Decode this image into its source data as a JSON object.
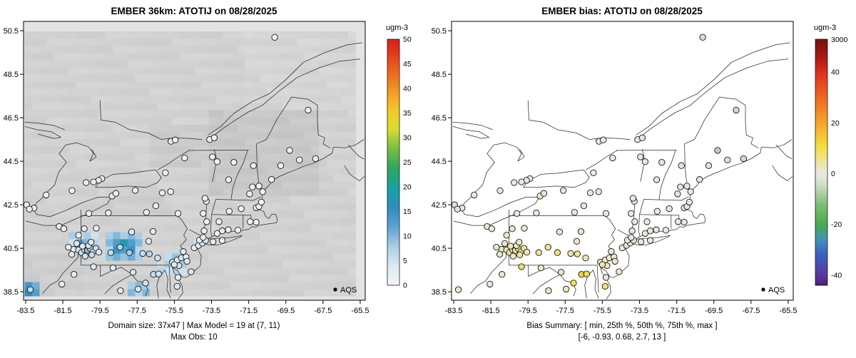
{
  "panels": [
    {
      "id": "model",
      "title": "EMBER 36km: ATOTIJ on 08/28/2025",
      "legend_label": "AQS",
      "captions": [
        "Domain size: 37x47 | Max Model = 19 at (7, 11)",
        "Max Obs: 10"
      ],
      "colorbar": {
        "title": "ugm-3",
        "tick_labels": [
          "0",
          "5",
          "10",
          "15",
          "20",
          "25",
          "30",
          "35",
          "40",
          "45",
          "50"
        ],
        "tick_values": [
          0,
          5,
          10,
          15,
          20,
          25,
          30,
          35,
          40,
          45,
          50
        ]
      }
    },
    {
      "id": "bias",
      "title": "EMBER bias: ATOTIJ on 08/28/2025",
      "legend_label": "AQS",
      "captions": [
        "Bias Summary: [ min, 25th %, 50th %, 75th %, max ]",
        "[-6, -0.93, 0.68, 2.7, 13 ]"
      ],
      "colorbar": {
        "title": "ugm-3",
        "tick_labels": [
          "3000",
          "40",
          "20",
          "0",
          "-20",
          "-40"
        ],
        "tick_values": [
          null,
          40,
          20,
          0,
          -20,
          -40
        ]
      }
    }
  ],
  "axes": {
    "x_tick_labels": [
      "-83.5",
      "-81.5",
      "-79.5",
      "-77.5",
      "-75.5",
      "-73.5",
      "-71.5",
      "-69.5",
      "-67.5",
      "-65.5"
    ],
    "x_tick_values": [
      -83.5,
      -81.5,
      -79.5,
      -77.5,
      -75.5,
      -73.5,
      -71.5,
      -69.5,
      -67.5,
      -65.5
    ],
    "y_tick_labels": [
      "38.5",
      "40.5",
      "42.5",
      "44.5",
      "46.5",
      "48.5",
      "50.5"
    ],
    "y_tick_values": [
      38.5,
      40.5,
      42.5,
      44.5,
      46.5,
      48.5,
      50.5
    ]
  },
  "chart_data": {
    "type": "heatmap",
    "subtype": "model-field-and-station-bias-maps",
    "xlim": [
      -83.615,
      -65.23
    ],
    "ylim": [
      38.11,
      50.93
    ],
    "summary": {
      "domain_size": "37x47",
      "max_model": 19,
      "max_model_cell": "(7, 11)",
      "max_obs": 10,
      "bias_min": -6,
      "bias_p25": -0.93,
      "bias_p50": 0.68,
      "bias_p75": 2.7,
      "bias_max": 13
    },
    "model_colorbar_range": [
      0,
      50
    ],
    "bias_colorbar_range": [
      -44,
      53
    ],
    "model_palette_stops": [
      [
        0,
        "#f5f5f4"
      ],
      [
        4,
        "#dde9f1"
      ],
      [
        8,
        "#abcde4"
      ],
      [
        12,
        "#5ba3d0"
      ],
      [
        16,
        "#2f8bbf"
      ],
      [
        20,
        "#16a3a3"
      ],
      [
        24,
        "#2fa65c"
      ],
      [
        28,
        "#7cbf45"
      ],
      [
        32,
        "#d9df2e"
      ],
      [
        36,
        "#f4c52b"
      ],
      [
        40,
        "#f29222"
      ],
      [
        44,
        "#ea611e"
      ],
      [
        48,
        "#e0301c"
      ],
      [
        50,
        "#dc1f1b"
      ]
    ],
    "bias_palette_stops": [
      [
        -44,
        "#4a1f7a"
      ],
      [
        -40,
        "#5e35a0"
      ],
      [
        -32,
        "#3b5fc0"
      ],
      [
        -26,
        "#3f8fc0"
      ],
      [
        -20,
        "#4aa84e"
      ],
      [
        -12,
        "#7ebd75"
      ],
      [
        -5,
        "#c8dac2"
      ],
      [
        0,
        "#e8e8e6"
      ],
      [
        5,
        "#eee49a"
      ],
      [
        11,
        "#f2df3c"
      ],
      [
        20,
        "#f6a52c"
      ],
      [
        30,
        "#ef6a1d"
      ],
      [
        40,
        "#dc2f1e"
      ],
      [
        47,
        "#a01713"
      ],
      [
        53,
        "#7a120f"
      ]
    ],
    "raster": {
      "outside": "#e3e3e3",
      "base_gray": 210,
      "grid": {
        "lon0": -83.55,
        "lat0": 38.3,
        "cols": 45,
        "rows": 37,
        "dlon": 0.3956,
        "dlat": 0.329
      },
      "gray_patches": [
        [
          -79.2,
          41.9,
          -75.8,
          43.3,
          206
        ],
        [
          -76.8,
          44.2,
          -73.0,
          46.2,
          204
        ],
        [
          -73.5,
          43.0,
          -67.8,
          46.8,
          200
        ],
        [
          -83.7,
          38.3,
          -80.5,
          40.3,
          206
        ],
        [
          -71.5,
          46.8,
          -65.7,
          50.5,
          213
        ]
      ],
      "value_patches": [
        [
          -81.35,
          40.15,
          -79.4,
          41.35,
          6
        ],
        [
          -80.75,
          40.45,
          -79.9,
          41.05,
          11
        ],
        [
          -79.3,
          39.95,
          -77.15,
          41.2,
          9
        ],
        [
          -78.65,
          40.25,
          -77.7,
          40.95,
          15
        ],
        [
          -78.35,
          40.45,
          -77.95,
          40.8,
          18
        ],
        [
          -76.05,
          39.35,
          -74.95,
          40.25,
          7
        ],
        [
          -75.7,
          39.55,
          -75.2,
          40.0,
          11
        ],
        [
          -77.85,
          38.45,
          -77.0,
          39.05,
          8
        ],
        [
          -83.62,
          38.35,
          -82.85,
          38.95,
          13
        ],
        [
          -83.62,
          38.35,
          -83.15,
          38.7,
          18
        ],
        [
          -74.35,
          40.45,
          -73.65,
          40.95,
          5
        ],
        [
          -76.6,
          39.15,
          -76.2,
          39.5,
          6
        ]
      ]
    },
    "stations_format": [
      "lon",
      "lat",
      "obs_ugm3",
      "bias_ugm3"
    ],
    "stations": [
      [
        -80.92,
        40.45,
        3,
        2.5
      ],
      [
        -80.65,
        40.42,
        4,
        3.2
      ],
      [
        -80.5,
        40.3,
        5,
        4.1
      ],
      [
        -80.34,
        40.44,
        6,
        4.8
      ],
      [
        -80.18,
        40.4,
        10,
        5.2
      ],
      [
        -80.02,
        40.48,
        6,
        3.9
      ],
      [
        -79.88,
        40.34,
        5,
        4.4
      ],
      [
        -80.44,
        40.6,
        4,
        2.8
      ],
      [
        -80.12,
        40.62,
        5,
        3.5
      ],
      [
        -79.72,
        40.5,
        6,
        5.0
      ],
      [
        -79.56,
        40.32,
        4,
        3.1
      ],
      [
        -80.3,
        40.14,
        5,
        2.2
      ],
      [
        -79.94,
        40.2,
        6,
        4.6
      ],
      [
        -81.02,
        40.22,
        3,
        1.8
      ],
      [
        -81.2,
        40.55,
        2,
        1.2
      ],
      [
        -80.75,
        40.72,
        3,
        2.0
      ],
      [
        -79.98,
        40.78,
        4,
        2.6
      ],
      [
        -80.1,
        42.1,
        2,
        0.8
      ],
      [
        -79.05,
        42.12,
        2,
        0.5
      ],
      [
        -80.35,
        41.4,
        3,
        1.5
      ],
      [
        -79.7,
        41.42,
        2,
        1.0
      ],
      [
        -78.92,
        40.3,
        6,
        5.5
      ],
      [
        -78.42,
        40.55,
        7,
        6.2
      ],
      [
        -77.92,
        40.3,
        8,
        7.0
      ],
      [
        -77.2,
        40.26,
        6,
        4.2
      ],
      [
        -76.85,
        40.24,
        7,
        5.8
      ],
      [
        -76.4,
        40.05,
        5,
        3.3
      ],
      [
        -76.88,
        40.82,
        4,
        2.4
      ],
      [
        -77.8,
        41.25,
        3,
        1.6
      ],
      [
        -76.65,
        41.27,
        3,
        1.4
      ],
      [
        -75.6,
        39.86,
        5,
        3.0
      ],
      [
        -75.35,
        39.96,
        4,
        2.1
      ],
      [
        -75.12,
        40.06,
        4,
        1.8
      ],
      [
        -74.87,
        40.1,
        3,
        1.2
      ],
      [
        -75.25,
        39.7,
        5,
        2.9
      ],
      [
        -74.6,
        39.42,
        4,
        2.0
      ],
      [
        -74.82,
        39.9,
        3,
        1.5
      ],
      [
        -75.02,
        40.35,
        3,
        1.0
      ],
      [
        -74.43,
        40.52,
        2,
        0.7
      ],
      [
        -74.2,
        40.63,
        3,
        0.9
      ],
      [
        -74.0,
        40.74,
        4,
        1.1
      ],
      [
        -73.82,
        40.86,
        3,
        0.6
      ],
      [
        -74.15,
        40.87,
        2,
        0.4
      ],
      [
        -73.95,
        41.0,
        2,
        0.3
      ],
      [
        -73.42,
        40.8,
        2,
        0.5
      ],
      [
        -72.92,
        40.86,
        1,
        0.2
      ],
      [
        -73.9,
        41.3,
        2,
        0.4
      ],
      [
        -73.76,
        41.72,
        1,
        0.1
      ],
      [
        -73.95,
        42.1,
        1,
        -0.2
      ],
      [
        -73.78,
        42.66,
        2,
        0.3
      ],
      [
        -73.2,
        41.18,
        2,
        0.6
      ],
      [
        -72.92,
        41.3,
        2,
        0.4
      ],
      [
        -72.6,
        41.35,
        1,
        0.2
      ],
      [
        -72.08,
        41.33,
        1,
        0.1
      ],
      [
        -73.1,
        41.72,
        1,
        -0.1
      ],
      [
        -71.42,
        41.72,
        1,
        0.1
      ],
      [
        -71.1,
        41.7,
        1,
        -0.3
      ],
      [
        -71.1,
        42.36,
        2,
        0.5
      ],
      [
        -70.95,
        42.42,
        1,
        0.2
      ],
      [
        -70.82,
        42.62,
        1,
        -0.4
      ],
      [
        -72.55,
        42.2,
        1,
        0.1
      ],
      [
        -71.9,
        42.32,
        1,
        0.3
      ],
      [
        -71.45,
        43.0,
        1,
        -0.5
      ],
      [
        -71.3,
        43.32,
        1,
        -0.2
      ],
      [
        -70.95,
        43.36,
        1,
        -0.6
      ],
      [
        -70.75,
        43.1,
        1,
        -0.3
      ],
      [
        -72.58,
        43.65,
        1,
        -0.4
      ],
      [
        -72.3,
        44.45,
        1,
        -0.8
      ],
      [
        -73.2,
        44.48,
        1,
        -0.5
      ],
      [
        -71.25,
        44.3,
        1,
        -0.9
      ],
      [
        -70.27,
        43.66,
        1,
        -0.7
      ],
      [
        -69.78,
        44.3,
        1,
        -1.2
      ],
      [
        -68.77,
        44.56,
        1,
        -2.0
      ],
      [
        -67.9,
        44.62,
        1,
        -3.5
      ],
      [
        -69.3,
        45.0,
        1,
        -6.0
      ],
      [
        -68.3,
        46.85,
        1,
        -4.5
      ],
      [
        -70.1,
        50.2,
        1,
        -3.0
      ],
      [
        -78.85,
        42.9,
        3,
        1.4
      ],
      [
        -78.65,
        43.02,
        2,
        0.8
      ],
      [
        -77.6,
        43.16,
        2,
        0.9
      ],
      [
        -76.15,
        43.05,
        2,
        0.6
      ],
      [
        -75.7,
        43.1,
        1,
        0.3
      ],
      [
        -75.3,
        42.1,
        2,
        0.7
      ],
      [
        -77.0,
        42.15,
        2,
        1.0
      ],
      [
        -76.5,
        42.45,
        1,
        0.4
      ],
      [
        -75.98,
        43.97,
        1,
        0.2
      ],
      [
        -73.45,
        44.7,
        1,
        -0.3
      ],
      [
        -74.95,
        44.65,
        1,
        -0.1
      ],
      [
        -73.85,
        42.8,
        2,
        0.4
      ],
      [
        -73.6,
        45.5,
        2,
        -0.5
      ],
      [
        -73.35,
        45.58,
        1,
        -0.8
      ],
      [
        -75.68,
        45.42,
        2,
        0.2
      ],
      [
        -75.45,
        45.48,
        1,
        -0.2
      ],
      [
        -79.4,
        43.7,
        3,
        0.8
      ],
      [
        -79.58,
        43.62,
        2,
        0.5
      ],
      [
        -79.85,
        43.55,
        2,
        0.3
      ],
      [
        -80.25,
        43.52,
        1,
        0.2
      ],
      [
        -81.0,
        43.15,
        1,
        0.4
      ],
      [
        -82.4,
        42.95,
        2,
        0.6
      ],
      [
        -83.05,
        42.35,
        3,
        1.1
      ],
      [
        -83.45,
        42.5,
        2,
        -2.5
      ],
      [
        -83.3,
        42.3,
        2,
        -1.5
      ],
      [
        -81.7,
        41.5,
        3,
        1.6
      ],
      [
        -81.45,
        41.4,
        2,
        1.0
      ],
      [
        -80.65,
        41.1,
        3,
        2.2
      ],
      [
        -81.55,
        38.85,
        2,
        1.0
      ],
      [
        -80.9,
        39.3,
        3,
        1.8
      ],
      [
        -79.85,
        39.65,
        4,
        8.5
      ],
      [
        -78.8,
        39.6,
        3,
        1.9
      ],
      [
        -77.72,
        39.4,
        4,
        2.8
      ],
      [
        -77.05,
        38.9,
        5,
        9.5
      ],
      [
        -76.62,
        39.3,
        6,
        13.0
      ],
      [
        -76.35,
        39.32,
        5,
        10.5
      ],
      [
        -77.45,
        38.62,
        4,
        3.5
      ],
      [
        -78.4,
        38.55,
        3,
        2.0
      ],
      [
        -75.5,
        39.75,
        4,
        2.6
      ],
      [
        -75.3,
        39.16,
        3,
        1.3
      ],
      [
        -75.35,
        38.75,
        3,
        7.0
      ],
      [
        -83.25,
        38.6,
        6,
        1.5
      ]
    ]
  }
}
